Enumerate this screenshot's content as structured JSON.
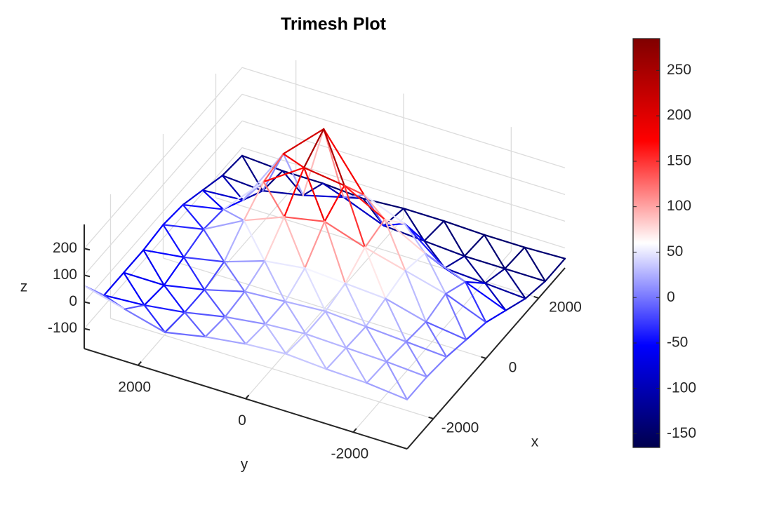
{
  "chart_data": {
    "type": "trimesh",
    "title": "Trimesh Plot",
    "xlabel": "x",
    "ylabel": "y",
    "zlabel": "z",
    "x": [
      -3000,
      -2250,
      -1500,
      -750,
      0,
      750,
      1500,
      2250,
      3000
    ],
    "y": [
      -3000,
      -2250,
      -1500,
      -750,
      0,
      750,
      1500,
      2250,
      3000
    ],
    "z": [
      [
        10,
        10,
        0,
        -20,
        -40,
        -80,
        -120,
        -140,
        -140
      ],
      [
        25,
        20,
        10,
        0,
        20,
        -20,
        -110,
        -140,
        -145
      ],
      [
        30,
        25,
        20,
        40,
        60,
        40,
        -100,
        -140,
        -145
      ],
      [
        40,
        30,
        30,
        50,
        100,
        120,
        20,
        -130,
        -140
      ],
      [
        30,
        20,
        20,
        60,
        150,
        200,
        80,
        -120,
        -140
      ],
      [
        10,
        0,
        10,
        40,
        120,
        220,
        280,
        -60,
        -150
      ],
      [
        -20,
        -30,
        -30,
        -10,
        60,
        120,
        140,
        -100,
        -140
      ],
      [
        20,
        -50,
        -60,
        -40,
        -20,
        -30,
        -80,
        -130,
        -140
      ],
      [
        60,
        -60,
        -60,
        -60,
        -50,
        -60,
        -90,
        -120,
        -130
      ]
    ],
    "xlim": [
      -3000,
      3000
    ],
    "ylim": [
      -3000,
      3000
    ],
    "zlim": [
      -175,
      290
    ],
    "xticks": [
      -2000,
      0,
      2000
    ],
    "yticks": [
      -2000,
      0,
      2000
    ],
    "zticks": [
      -100,
      0,
      100,
      200
    ],
    "clim": [
      -165,
      285
    ],
    "cticks": [
      -150,
      -100,
      -50,
      0,
      50,
      100,
      150,
      200,
      250
    ],
    "colormap": [
      "#00004d",
      "#0000ff",
      "#ffffff",
      "#ff0000",
      "#800000"
    ],
    "grid": true
  }
}
